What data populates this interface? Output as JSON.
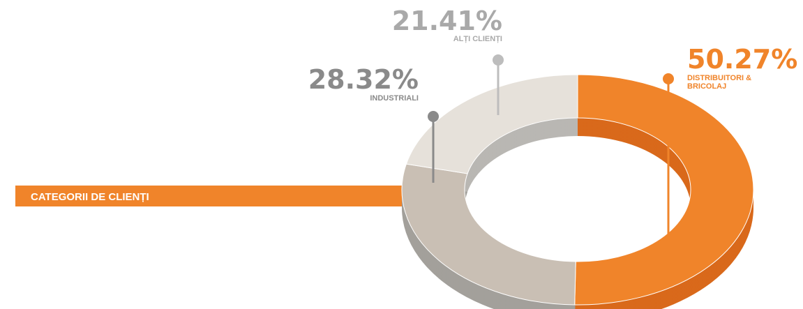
{
  "banner": {
    "title": "CATEGORII DE CLIENȚI"
  },
  "colors": {
    "accent": "#f0842a",
    "banner": "#f0842a",
    "leader_mid": "#8a8a8a",
    "leader_light": "#bdbdbd"
  },
  "chart_data": {
    "type": "pie",
    "title": "",
    "slices": [
      {
        "label_lines": [
          "DISTRIBUITORI &",
          "BRICOLAJ"
        ],
        "value": 50.27,
        "value_text": "50.27%",
        "color": "#f0842a",
        "side": "#d9691b",
        "text_color": "#f0842a"
      },
      {
        "label_lines": [
          "INDUSTRIALI"
        ],
        "value": 28.32,
        "value_text": "28.32%",
        "color": "#c9bfb4",
        "side": "#a3a09b",
        "text_color": "#8a8a8a"
      },
      {
        "label_lines": [
          "ALȚI CLIENȚI"
        ],
        "value": 21.41,
        "value_text": "21.41%",
        "color": "#e6e1da",
        "side": "#b9b7b3",
        "text_color": "#a9a9a9"
      }
    ]
  }
}
